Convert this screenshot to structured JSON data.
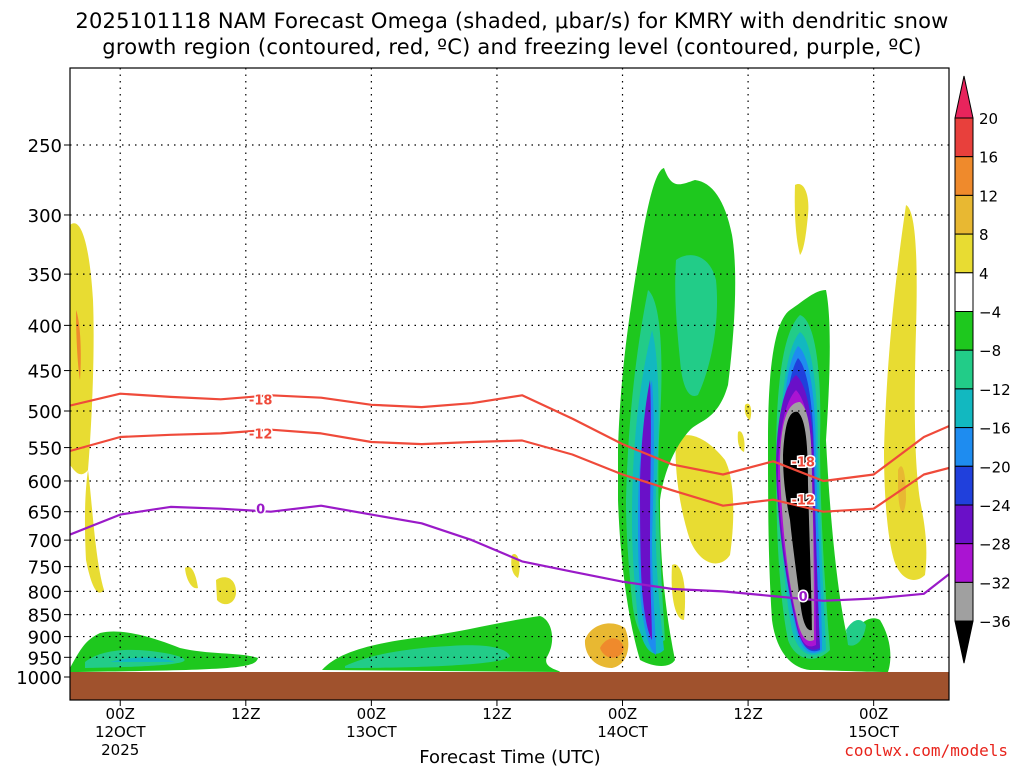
{
  "title": {
    "line1": "2025101118 NAM Forecast Omega (shaded, μbar/s) for KMRY with dendritic snow",
    "line2": "growth region (contoured, red, ºC) and freezing level (contoured, purple, ºC)"
  },
  "credit": "coolwx.com/models",
  "chart_data": {
    "type": "contour-time-height",
    "xlabel": "Forecast Time (UTC)",
    "ylabel": "Pressure (hPa)",
    "x_range_hours": [
      -4,
      66
    ],
    "y_range_hpa": [
      1000,
      200
    ],
    "y_ticks": [
      250,
      300,
      350,
      400,
      450,
      500,
      550,
      600,
      650,
      700,
      750,
      800,
      850,
      900,
      950,
      1000
    ],
    "x_ticks": [
      {
        "hour": 0,
        "label": "00Z",
        "sub": "12OCT",
        "sub2": "2025"
      },
      {
        "hour": 10,
        "label": "12Z",
        "sub": "",
        "sub2": ""
      },
      {
        "hour": 20,
        "label": "00Z",
        "sub": "13OCT",
        "sub2": ""
      },
      {
        "hour": 30,
        "label": "12Z",
        "sub": "",
        "sub2": ""
      },
      {
        "hour": 40,
        "label": "00Z",
        "sub": "14OCT",
        "sub2": ""
      },
      {
        "hour": 50,
        "label": "12Z",
        "sub": "",
        "sub2": ""
      },
      {
        "hour": 60,
        "label": "00Z",
        "sub": "15OCT",
        "sub2": ""
      }
    ],
    "colorbar": {
      "labels": [
        "20",
        "16",
        "12",
        "8",
        "4",
        "−4",
        "−8",
        "−12",
        "−16",
        "−20",
        "−24",
        "−28",
        "−32",
        "−36"
      ],
      "colors": [
        "#e8245c",
        "#e8403c",
        "#ef8a2c",
        "#e8b832",
        "#e8dc32",
        "#ffffff",
        "#1ec81e",
        "#22cc88",
        "#12b8c0",
        "#1e8cf0",
        "#2040dc",
        "#6a10c8",
        "#aa14d2",
        "#a0a0a0",
        "#000000"
      ]
    },
    "series": [
      {
        "name": "-18 isotherm",
        "color": "#ef4a3a",
        "label": "-18",
        "x": [
          -4,
          0,
          4,
          8,
          12,
          16,
          20,
          24,
          28,
          32,
          36,
          40,
          44,
          48,
          52,
          56,
          60,
          64,
          66
        ],
        "y": [
          493,
          478,
          482,
          485,
          480,
          483,
          492,
          495,
          490,
          480,
          510,
          545,
          575,
          590,
          570,
          600,
          590,
          535,
          520
        ]
      },
      {
        "name": "-12 isotherm",
        "color": "#ef4a3a",
        "label": "-12",
        "x": [
          -4,
          0,
          4,
          8,
          12,
          16,
          20,
          24,
          28,
          32,
          36,
          40,
          44,
          48,
          52,
          56,
          60,
          64,
          66
        ],
        "y": [
          555,
          535,
          532,
          530,
          525,
          530,
          542,
          545,
          542,
          540,
          560,
          590,
          615,
          640,
          630,
          650,
          645,
          590,
          580
        ]
      },
      {
        "name": "0 isotherm (freezing level)",
        "color": "#9a1ac8",
        "label": "0",
        "x": [
          -4,
          0,
          4,
          8,
          12,
          16,
          20,
          24,
          28,
          32,
          36,
          40,
          44,
          48,
          52,
          56,
          60,
          64,
          66
        ],
        "y": [
          690,
          655,
          642,
          645,
          650,
          640,
          655,
          670,
          700,
          740,
          760,
          780,
          795,
          800,
          810,
          820,
          815,
          805,
          765
        ]
      }
    ]
  }
}
